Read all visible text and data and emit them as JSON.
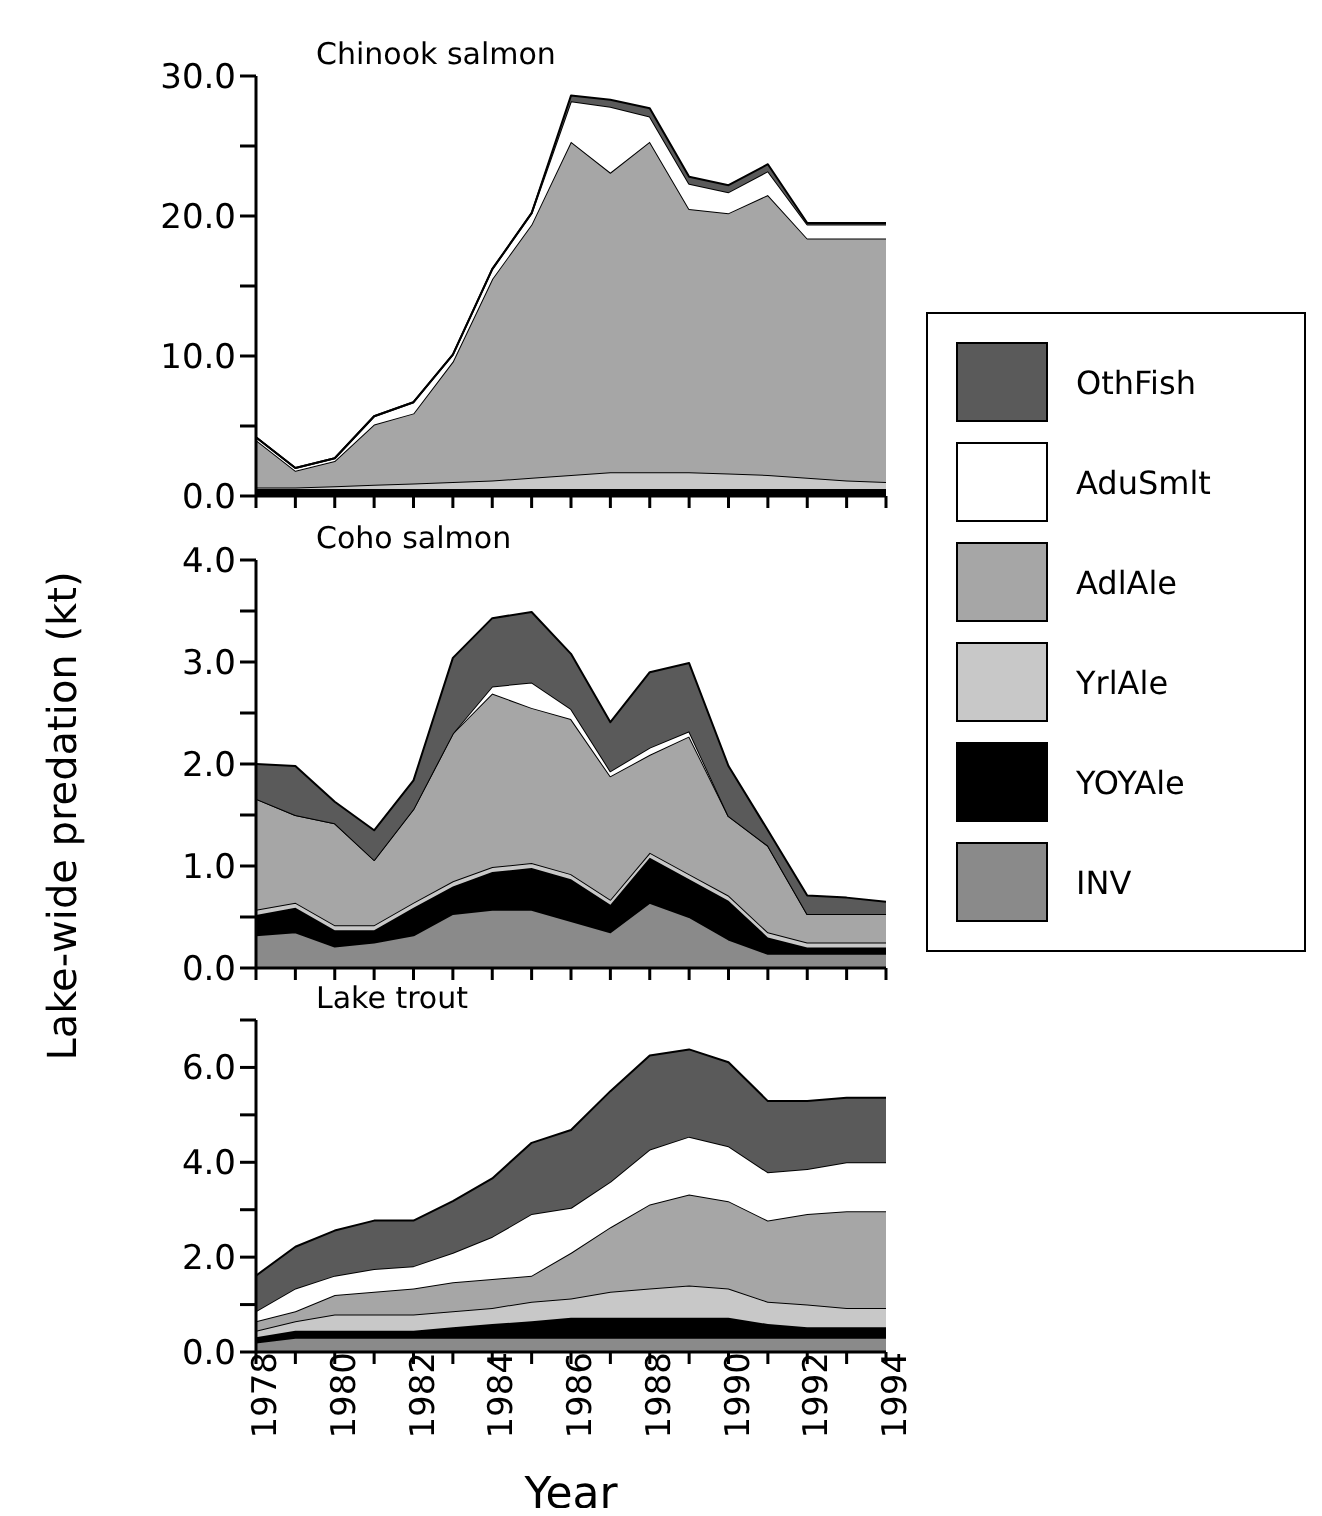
{
  "chart_data": [
    {
      "type": "area",
      "title": "Chinook salmon",
      "stacked": true,
      "legend": "right",
      "x": [
        1978,
        1979,
        1980,
        1981,
        1982,
        1983,
        1984,
        1985,
        1986,
        1987,
        1988,
        1989,
        1990,
        1991,
        1992,
        1993,
        1994
      ],
      "series": [
        {
          "name": "INV",
          "color": "#8a8a8a",
          "values": [
            0.1,
            0.1,
            0.1,
            0.1,
            0.1,
            0.1,
            0.1,
            0.1,
            0.1,
            0.1,
            0.1,
            0.1,
            0.1,
            0.1,
            0.1,
            0.1,
            0.1
          ]
        },
        {
          "name": "YOYAle",
          "color": "#000000",
          "values": [
            0.4,
            0.4,
            0.4,
            0.4,
            0.4,
            0.4,
            0.4,
            0.4,
            0.4,
            0.4,
            0.4,
            0.4,
            0.4,
            0.4,
            0.4,
            0.4,
            0.4
          ]
        },
        {
          "name": "YrlAle",
          "color": "#c8c8c8",
          "values": [
            0.1,
            0.1,
            0.2,
            0.3,
            0.4,
            0.5,
            0.6,
            0.8,
            1.0,
            1.2,
            1.2,
            1.2,
            1.1,
            1.0,
            0.8,
            0.6,
            0.5
          ]
        },
        {
          "name": "AdlAle",
          "color": "#a6a6a6",
          "values": [
            3.4,
            1.2,
            1.8,
            4.3,
            5.0,
            8.6,
            14.4,
            18.1,
            23.8,
            21.4,
            23.6,
            18.8,
            18.6,
            20.0,
            17.1,
            17.3,
            17.4
          ]
        },
        {
          "name": "AduSmlt",
          "color": "#ffffff",
          "values": [
            0.2,
            0.2,
            0.2,
            0.6,
            0.8,
            0.5,
            0.7,
            0.8,
            2.9,
            4.7,
            1.8,
            1.8,
            1.5,
            1.7,
            1.0,
            1.0,
            1.0
          ]
        },
        {
          "name": "OthFish",
          "color": "#5a5a5a",
          "values": [
            0,
            0,
            0,
            0,
            0,
            0,
            0,
            0,
            0.4,
            0.5,
            0.6,
            0.5,
            0.5,
            0.5,
            0.1,
            0.1,
            0.1
          ]
        }
      ],
      "xlim": [
        1978,
        1994
      ],
      "xticks": [
        1978,
        {
          "value": 1979,
          "label": null
        },
        1980,
        {
          "value": 1981,
          "label": null
        },
        1982,
        {
          "value": 1983,
          "label": null
        },
        1984,
        {
          "value": 1985,
          "label": null
        },
        1986,
        {
          "value": 1987,
          "label": null
        },
        1988,
        {
          "value": 1989,
          "label": null
        },
        1990,
        {
          "value": 1991,
          "label": null
        },
        1992,
        {
          "value": 1993,
          "label": null
        },
        1994
      ],
      "ylim": [
        0,
        30
      ],
      "yticks": [
        {
          "value": 0,
          "label": "0.0"
        },
        {
          "value": 5,
          "label": null
        },
        {
          "value": 10,
          "label": "10.0"
        },
        {
          "value": 15,
          "label": null
        },
        {
          "value": 20,
          "label": "20.0"
        },
        {
          "value": 25,
          "label": null
        },
        {
          "value": 30,
          "label": "30.0"
        }
      ],
      "tick_labels": "y"
    },
    {
      "type": "area",
      "title": "Coho salmon",
      "stacked": true,
      "ylabel": "Lake-wide predation (kt)",
      "x": [
        1978,
        1979,
        1980,
        1981,
        1982,
        1983,
        1984,
        1985,
        1986,
        1987,
        1988,
        1989,
        1990,
        1991,
        1992,
        1993,
        1994
      ],
      "series": [
        {
          "color": "#8a8a8a",
          "values": [
            0.32,
            0.35,
            0.21,
            0.25,
            0.32,
            0.53,
            0.57,
            0.57,
            0.46,
            0.35,
            0.64,
            0.5,
            0.28,
            0.14,
            0.14,
            0.14,
            0.14
          ]
        },
        {
          "color": "#000000",
          "values": [
            0.2,
            0.24,
            0.16,
            0.12,
            0.27,
            0.27,
            0.37,
            0.41,
            0.41,
            0.27,
            0.44,
            0.37,
            0.38,
            0.16,
            0.06,
            0.06,
            0.06
          ]
        },
        {
          "color": "#c8c8c8",
          "values": [
            0.05,
            0.05,
            0.05,
            0.05,
            0.05,
            0.05,
            0.05,
            0.05,
            0.05,
            0.05,
            0.05,
            0.05,
            0.05,
            0.05,
            0.05,
            0.05,
            0.05
          ]
        },
        {
          "color": "#a6a6a6",
          "values": [
            1.09,
            0.86,
            1.0,
            0.64,
            0.92,
            1.45,
            1.7,
            1.52,
            1.52,
            1.21,
            0.96,
            1.35,
            0.78,
            0.85,
            0.28,
            0.28,
            0.28
          ]
        },
        {
          "color": "#ffffff",
          "values": [
            0,
            0,
            0,
            0,
            0,
            0,
            0.07,
            0.25,
            0.1,
            0.05,
            0.07,
            0.05,
            0,
            0,
            0,
            0,
            0
          ]
        },
        {
          "color": "#5a5a5a",
          "values": [
            0.34,
            0.48,
            0.21,
            0.29,
            0.28,
            0.74,
            0.67,
            0.69,
            0.54,
            0.48,
            0.74,
            0.67,
            0.49,
            0.15,
            0.18,
            0.16,
            0.12
          ]
        }
      ],
      "xlim": [
        1978,
        1994
      ],
      "xticks": [
        1978,
        {
          "value": 1979,
          "label": null
        },
        1980,
        {
          "value": 1981,
          "label": null
        },
        1982,
        {
          "value": 1983,
          "label": null
        },
        1984,
        {
          "value": 1985,
          "label": null
        },
        1986,
        {
          "value": 1987,
          "label": null
        },
        1988,
        {
          "value": 1989,
          "label": null
        },
        1990,
        {
          "value": 1991,
          "label": null
        },
        1992,
        {
          "value": 1993,
          "label": null
        },
        1994
      ],
      "ylim": [
        0,
        4
      ],
      "yticks": [
        {
          "value": 0,
          "label": "0.0"
        },
        {
          "value": 0.5,
          "label": null
        },
        {
          "value": 1,
          "label": "1.0"
        },
        {
          "value": 1.5,
          "label": null
        },
        {
          "value": 2,
          "label": "2.0"
        },
        {
          "value": 2.5,
          "label": null
        },
        {
          "value": 3,
          "label": "3.0"
        },
        {
          "value": 3.5,
          "label": null
        },
        {
          "value": 4,
          "label": "4.0"
        }
      ],
      "tick_labels": "y"
    },
    {
      "type": "area",
      "title": "Lake trout",
      "stacked": true,
      "xlabel": "Year",
      "x": [
        1978,
        1979,
        1980,
        1981,
        1982,
        1983,
        1984,
        1985,
        1986,
        1987,
        1988,
        1989,
        1990,
        1991,
        1992,
        1993,
        1994
      ],
      "series": [
        {
          "color": "#8a8a8a",
          "values": [
            0.2,
            0.3,
            0.3,
            0.3,
            0.3,
            0.3,
            0.3,
            0.3,
            0.3,
            0.3,
            0.3,
            0.3,
            0.3,
            0.3,
            0.3,
            0.3,
            0.3
          ]
        },
        {
          "color": "#000000",
          "values": [
            0.11,
            0.15,
            0.15,
            0.15,
            0.15,
            0.22,
            0.29,
            0.35,
            0.42,
            0.42,
            0.42,
            0.42,
            0.42,
            0.29,
            0.22,
            0.22,
            0.22
          ]
        },
        {
          "color": "#c8c8c8",
          "values": [
            0.14,
            0.2,
            0.34,
            0.34,
            0.34,
            0.34,
            0.34,
            0.41,
            0.41,
            0.55,
            0.62,
            0.68,
            0.62,
            0.47,
            0.48,
            0.41,
            0.41
          ]
        },
        {
          "color": "#a6a6a6",
          "values": [
            0.2,
            0.21,
            0.41,
            0.48,
            0.55,
            0.61,
            0.61,
            0.55,
            0.96,
            1.36,
            1.77,
            1.92,
            1.84,
            1.71,
            1.91,
            2.04,
            2.04
          ]
        },
        {
          "color": "#ffffff",
          "values": [
            0.21,
            0.48,
            0.41,
            0.48,
            0.47,
            0.62,
            0.89,
            1.3,
            0.95,
            0.96,
            1.16,
            1.22,
            1.16,
            1.02,
            0.95,
            1.03,
            1.03
          ]
        },
        {
          "color": "#5a5a5a",
          "values": [
            0.75,
            0.88,
            0.95,
            1.02,
            0.96,
            1.09,
            1.23,
            1.5,
            1.64,
            1.91,
            1.98,
            1.84,
            1.77,
            1.5,
            1.43,
            1.36,
            1.36
          ]
        }
      ],
      "xlim": [
        1978,
        1994
      ],
      "xticks": [
        1978,
        {
          "value": 1979,
          "label": null
        },
        1980,
        {
          "value": 1981,
          "label": null
        },
        1982,
        {
          "value": 1983,
          "label": null
        },
        1984,
        {
          "value": 1985,
          "label": null
        },
        1986,
        {
          "value": 1987,
          "label": null
        },
        1988,
        {
          "value": 1989,
          "label": null
        },
        1990,
        {
          "value": 1991,
          "label": null
        },
        1992,
        {
          "value": 1993,
          "label": null
        },
        1994
      ],
      "ylim": [
        0,
        7
      ],
      "yticks": [
        {
          "value": 0,
          "label": "0.0"
        },
        {
          "value": 1,
          "label": null
        },
        {
          "value": 2,
          "label": "2.0"
        },
        {
          "value": 3,
          "label": null
        },
        {
          "value": 4,
          "label": "4.0"
        },
        {
          "value": 5,
          "label": null
        },
        {
          "value": 6,
          "label": "6.0"
        },
        {
          "value": 7,
          "label": null
        }
      ]
    }
  ]
}
